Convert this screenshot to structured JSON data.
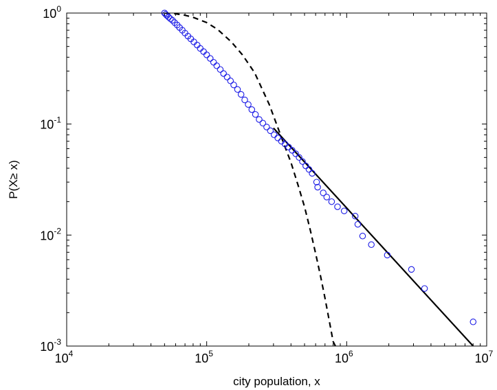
{
  "chart_data": {
    "type": "scatter",
    "xlabel": "city population, x",
    "ylabel": "P(X≥ x)",
    "x_scale": "log",
    "y_scale": "log",
    "xlim": [
      10000,
      10000000
    ],
    "ylim": [
      0.001,
      1
    ],
    "x_ticks": [
      {
        "value": 10000,
        "base": "10",
        "exp": "4"
      },
      {
        "value": 100000,
        "base": "10",
        "exp": "5"
      },
      {
        "value": 1000000,
        "base": "10",
        "exp": "6"
      },
      {
        "value": 10000000,
        "base": "10",
        "exp": "7"
      }
    ],
    "y_ticks": [
      {
        "value": 0.001,
        "base": "10",
        "exp": "-3"
      },
      {
        "value": 0.01,
        "base": "10",
        "exp": "-2"
      },
      {
        "value": 0.1,
        "base": "10",
        "exp": "-1"
      },
      {
        "value": 1,
        "base": "10",
        "exp": "0"
      }
    ],
    "grid": false,
    "series": [
      {
        "kind": "markers",
        "marker": "open-circle",
        "color": "#1a1ae6",
        "x": [
          50000,
          51000,
          52000,
          53500,
          55000,
          57000,
          59000,
          61500,
          64000,
          67000,
          70000,
          73500,
          77000,
          81000,
          85500,
          90000,
          95000,
          100000,
          106000,
          112000,
          118000,
          125000,
          132000,
          140000,
          148000,
          156000,
          166000,
          176000,
          187000,
          198000,
          210000,
          223000,
          237000,
          252000,
          268000,
          285000,
          303000,
          322000,
          342000,
          363000,
          385000,
          408000,
          432000,
          457000,
          483000,
          510000,
          538000,
          567000,
          610000,
          620000,
          680000,
          720000,
          780000,
          860000,
          960000,
          1150000,
          1200000,
          1300000,
          1500000,
          1950000,
          2900000,
          3600000,
          8000000
        ],
        "y": [
          1.0,
          0.975,
          0.95,
          0.92,
          0.89,
          0.86,
          0.82,
          0.78,
          0.74,
          0.7,
          0.66,
          0.62,
          0.585,
          0.55,
          0.515,
          0.48,
          0.45,
          0.42,
          0.39,
          0.36,
          0.335,
          0.31,
          0.285,
          0.265,
          0.245,
          0.225,
          0.205,
          0.185,
          0.165,
          0.15,
          0.135,
          0.122,
          0.11,
          0.102,
          0.094,
          0.087,
          0.08,
          0.075,
          0.07,
          0.066,
          0.062,
          0.058,
          0.054,
          0.05,
          0.046,
          0.042,
          0.039,
          0.036,
          0.03,
          0.027,
          0.024,
          0.022,
          0.02,
          0.018,
          0.0165,
          0.0148,
          0.0125,
          0.0098,
          0.0082,
          0.0066,
          0.0049,
          0.0033,
          0.00165
        ]
      },
      {
        "kind": "line",
        "style": "solid",
        "color": "#000000",
        "x": [
          300000,
          8000000
        ],
        "y": [
          0.092,
          0.001
        ]
      },
      {
        "kind": "line",
        "style": "dashed",
        "color": "#000000",
        "x": [
          50000,
          60000,
          70000,
          80000,
          100000,
          120000,
          150000,
          180000,
          220000,
          280000,
          350000,
          400000,
          450000,
          500000,
          550000,
          600000,
          650000,
          700000,
          750000,
          800000,
          830000
        ],
        "y": [
          1.0,
          0.985,
          0.955,
          0.915,
          0.82,
          0.71,
          0.55,
          0.42,
          0.29,
          0.15,
          0.07,
          0.045,
          0.028,
          0.018,
          0.011,
          0.0068,
          0.0043,
          0.0027,
          0.0017,
          0.0011,
          0.001
        ]
      }
    ]
  }
}
